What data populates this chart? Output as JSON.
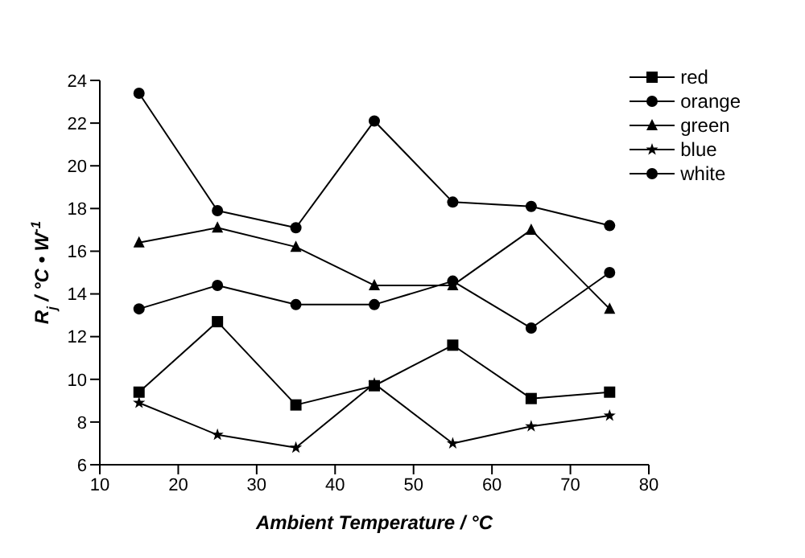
{
  "chart_data": {
    "type": "line",
    "xlabel": "Ambient Temperature / °C",
    "ylabel": "R$_{j}$ / °C • W$^{-1}$",
    "x": [
      15,
      25,
      35,
      45,
      55,
      65,
      75
    ],
    "series": [
      {
        "name": "red",
        "color": "#000000",
        "marker": "square",
        "values": [
          9.4,
          12.7,
          8.8,
          9.7,
          11.6,
          9.1,
          9.4
        ]
      },
      {
        "name": "orange",
        "color": "#000000",
        "marker": "circle",
        "values": [
          13.3,
          14.4,
          13.5,
          13.5,
          14.6,
          12.4,
          15.0
        ]
      },
      {
        "name": "green",
        "color": "#000000",
        "marker": "triangle",
        "values": [
          16.4,
          17.1,
          16.2,
          14.4,
          14.4,
          17.0,
          13.3
        ]
      },
      {
        "name": "blue",
        "color": "#000000",
        "marker": "star",
        "values": [
          8.9,
          7.4,
          6.8,
          9.8,
          7.0,
          7.8,
          8.3
        ]
      },
      {
        "name": "white",
        "color": "#000000",
        "marker": "circle",
        "values": [
          23.4,
          17.9,
          17.1,
          22.1,
          18.3,
          18.1,
          17.2
        ]
      }
    ],
    "xlim": [
      10,
      80
    ],
    "xticks": [
      10,
      20,
      30,
      40,
      50,
      60,
      70,
      80
    ],
    "ylim": [
      6,
      24
    ],
    "yticks": [
      6,
      8,
      10,
      12,
      14,
      16,
      18,
      20,
      22,
      24
    ],
    "grid": false,
    "legend": "top right",
    "line_style": "solid"
  }
}
